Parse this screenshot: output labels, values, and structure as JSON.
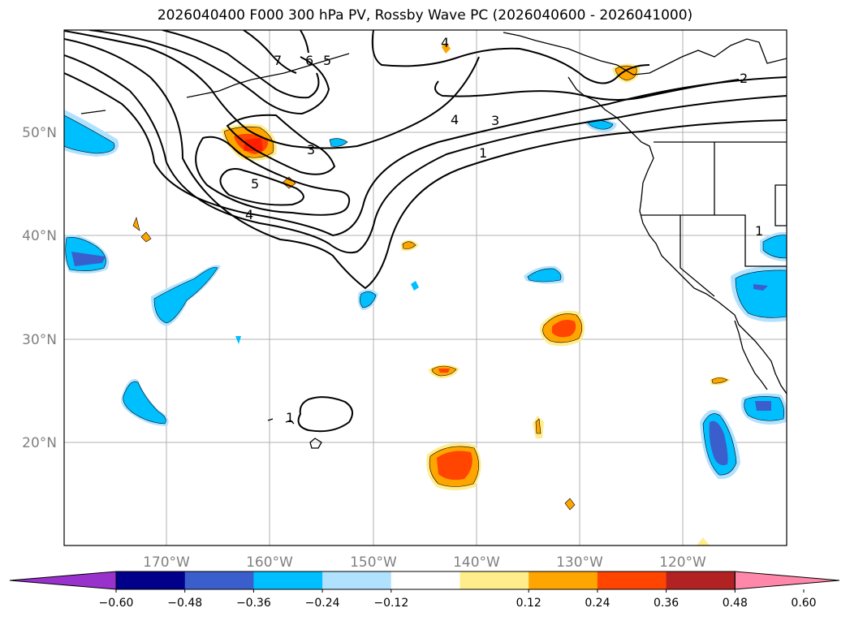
{
  "title": "2026040400 F000 300 hPa PV, Rossby Wave PC (2026040600 - 2026041000)",
  "lat_labels": [
    "50°N",
    "40°N",
    "30°N",
    "20°N"
  ],
  "lon_labels": [
    "170°W",
    "160°W",
    "150°W",
    "140°W",
    "130°W",
    "120°W"
  ],
  "colorbar": {
    "colors": [
      "#9932CC",
      "#00008B",
      "#3A5FCD",
      "#00BFFF",
      "#B0E2FF",
      "#FFFFFF",
      "#FFEC8B",
      "#FFA500",
      "#FF4500",
      "#B22222",
      "#FF88AA"
    ],
    "tick_labels": [
      "−0.60",
      "−0.48",
      "−0.36",
      "−0.24",
      "−0.12",
      "0.12",
      "0.24",
      "0.36",
      "0.48",
      "0.60"
    ]
  },
  "contour_labels": [
    "7",
    "6",
    "5",
    "4",
    "4",
    "3",
    "3",
    "5",
    "4",
    "2",
    "1",
    "1",
    "1"
  ]
}
